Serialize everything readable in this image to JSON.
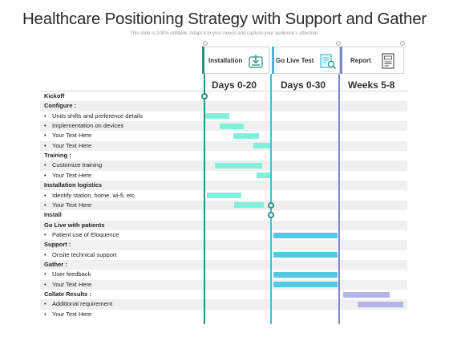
{
  "title": "Healthcare Positioning Strategy with Support and Gather",
  "subtitle": "This slide is 100% editable. Adapt it to your needs and capture your audience's attention.",
  "colors": {
    "teal": "#2b8f8a",
    "cyan": "#3fbdd6",
    "purple": "#7f86c9",
    "mint": "#7ff0dc",
    "sky": "#55c8e6",
    "lavender": "#b3b6e6"
  },
  "stages": [
    {
      "label": "Installation",
      "icon": "download-box-icon"
    },
    {
      "label": "Go Live Test",
      "icon": "checklist-search-icon"
    },
    {
      "label": "Report",
      "icon": "document-report-icon"
    }
  ],
  "columns": [
    "Days 0-20",
    "Days 0-30",
    "Weeks 5-8"
  ],
  "rows": [
    {
      "label": "Kickoff",
      "kind": "head"
    },
    {
      "label": "Configure :",
      "kind": "head"
    },
    {
      "label": "Units shifts and preference  details",
      "kind": "item"
    },
    {
      "label": "Implementation on devices",
      "kind": "item"
    },
    {
      "label": "Your Text Here",
      "kind": "item"
    },
    {
      "label": "Your Text Here",
      "kind": "item"
    },
    {
      "label": "Training :",
      "kind": "head"
    },
    {
      "label": "Customize training",
      "kind": "item"
    },
    {
      "label": "Your Text Here",
      "kind": "item"
    },
    {
      "label": "Installation logistics",
      "kind": "head"
    },
    {
      "label": "Identify station, home, wi-fi, etc.",
      "kind": "item"
    },
    {
      "label": "Your Text Here",
      "kind": "item"
    },
    {
      "label": "Install",
      "kind": "head"
    },
    {
      "label": "Go Live with patients",
      "kind": "head"
    },
    {
      "label": "Patient use of Eloquence",
      "kind": "item"
    },
    {
      "label": "Support :",
      "kind": "head"
    },
    {
      "label": "Onsite technical support",
      "kind": "item"
    },
    {
      "label": "Gather :",
      "kind": "head"
    },
    {
      "label": "User feedback",
      "kind": "item"
    },
    {
      "label": "Your Text Here",
      "kind": "item"
    },
    {
      "label": "Collate Results  :",
      "kind": "head"
    },
    {
      "label": "Additional requirement",
      "kind": "item"
    },
    {
      "label": "Your Text Here",
      "kind": "item"
    }
  ],
  "milestones": [
    {
      "row": 0,
      "line": 0
    },
    {
      "row": 11,
      "line": 1
    },
    {
      "row": 12,
      "line": 1
    }
  ]
}
